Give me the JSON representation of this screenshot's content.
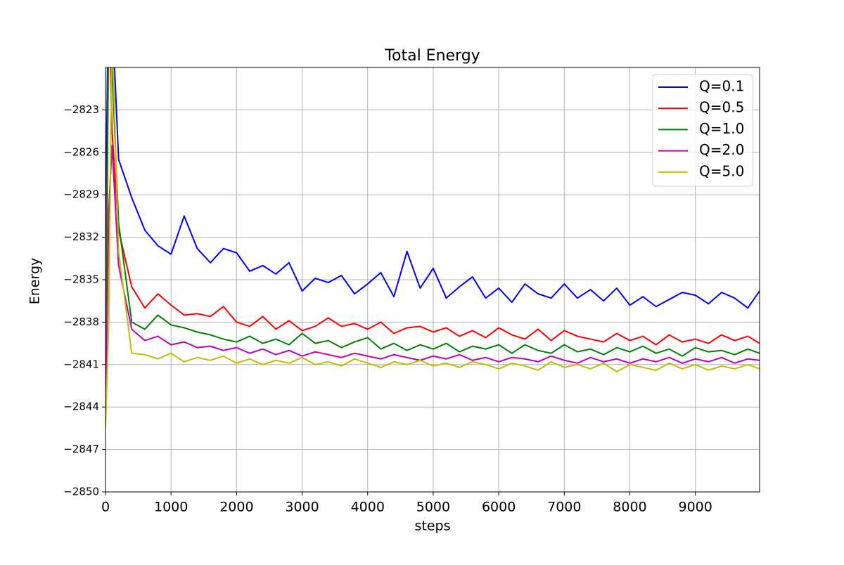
{
  "chart_data": {
    "type": "line",
    "title": "Total Energy",
    "x_label": "steps",
    "y_label": "Energy",
    "x": [
      0,
      50,
      100,
      200,
      400,
      600,
      800,
      1000,
      1200,
      1400,
      1600,
      1800,
      2000,
      2200,
      2400,
      2600,
      2800,
      3000,
      3200,
      3400,
      3600,
      3800,
      4000,
      4200,
      4400,
      4600,
      4800,
      5000,
      5200,
      5400,
      5600,
      5800,
      6000,
      6200,
      6400,
      6600,
      6800,
      7000,
      7200,
      7400,
      7600,
      7800,
      8000,
      8200,
      8400,
      8600,
      8800,
      9000,
      9200,
      9400,
      9600,
      9800,
      9980
    ],
    "series": [
      {
        "name": "Q=0.1",
        "color": "#0000ff",
        "values": [
          -2832.7,
          -2812,
          -2816,
          -2826.5,
          -2829.2,
          -2831.5,
          -2832.6,
          -2833.2,
          -2830.5,
          -2832.8,
          -2833.8,
          -2832.8,
          -2833.1,
          -2834.4,
          -2834.0,
          -2834.6,
          -2833.8,
          -2835.8,
          -2834.9,
          -2835.2,
          -2834.7,
          -2836.0,
          -2835.3,
          -2834.5,
          -2836.2,
          -2833.0,
          -2835.6,
          -2834.2,
          -2836.3,
          -2835.5,
          -2834.8,
          -2836.3,
          -2835.6,
          -2836.6,
          -2835.3,
          -2836.0,
          -2836.3,
          -2835.3,
          -2836.3,
          -2835.7,
          -2836.5,
          -2835.6,
          -2836.8,
          -2836.2,
          -2836.9,
          -2836.4,
          -2835.9,
          -2836.1,
          -2836.7,
          -2835.9,
          -2836.3,
          -2837.0,
          -2835.8
        ]
      },
      {
        "name": "Q=0.5",
        "color": "#ff0000",
        "values": [
          -2840.5,
          -2815,
          -2824.5,
          -2831.5,
          -2835.5,
          -2837.0,
          -2836.0,
          -2836.8,
          -2837.5,
          -2837.4,
          -2837.6,
          -2836.9,
          -2838.0,
          -2838.3,
          -2837.6,
          -2838.5,
          -2837.9,
          -2838.6,
          -2838.3,
          -2837.7,
          -2838.3,
          -2838.1,
          -2838.5,
          -2838.0,
          -2838.8,
          -2838.4,
          -2838.3,
          -2838.7,
          -2838.4,
          -2839.0,
          -2838.6,
          -2839.1,
          -2838.4,
          -2838.9,
          -2839.2,
          -2838.5,
          -2839.3,
          -2838.6,
          -2839.0,
          -2839.2,
          -2839.4,
          -2838.8,
          -2839.3,
          -2839.0,
          -2839.6,
          -2838.9,
          -2839.4,
          -2839.2,
          -2839.5,
          -2838.9,
          -2839.3,
          -2839.0,
          -2839.5
        ]
      },
      {
        "name": "Q=1.0",
        "color": "#008000",
        "values": [
          -2843,
          -2816,
          -2820,
          -2831,
          -2838.0,
          -2838.5,
          -2837.5,
          -2838.2,
          -2838.4,
          -2838.7,
          -2838.9,
          -2839.2,
          -2839.4,
          -2839.0,
          -2839.5,
          -2839.2,
          -2839.6,
          -2838.8,
          -2839.5,
          -2839.3,
          -2839.8,
          -2839.4,
          -2839.1,
          -2839.9,
          -2839.5,
          -2840.0,
          -2839.6,
          -2839.9,
          -2839.5,
          -2840.1,
          -2839.7,
          -2839.9,
          -2839.6,
          -2840.2,
          -2839.6,
          -2840.0,
          -2840.2,
          -2839.6,
          -2840.1,
          -2839.9,
          -2840.3,
          -2839.8,
          -2840.1,
          -2839.7,
          -2840.2,
          -2839.9,
          -2840.4,
          -2839.8,
          -2840.1,
          -2840.0,
          -2840.3,
          -2839.9,
          -2840.2
        ]
      },
      {
        "name": "Q=2.0",
        "color": "#bf00bf",
        "values": [
          -2844.5,
          -2830,
          -2825.5,
          -2834,
          -2838.5,
          -2839.3,
          -2839.0,
          -2839.6,
          -2839.4,
          -2839.8,
          -2839.7,
          -2840.0,
          -2839.8,
          -2840.2,
          -2839.9,
          -2840.3,
          -2840.0,
          -2840.4,
          -2840.1,
          -2840.3,
          -2840.5,
          -2840.2,
          -2840.4,
          -2840.6,
          -2840.3,
          -2840.5,
          -2840.7,
          -2840.4,
          -2840.6,
          -2840.3,
          -2840.7,
          -2840.5,
          -2840.8,
          -2840.5,
          -2840.6,
          -2840.8,
          -2840.4,
          -2840.7,
          -2840.9,
          -2840.5,
          -2840.8,
          -2840.6,
          -2840.9,
          -2840.6,
          -2840.8,
          -2840.5,
          -2840.9,
          -2840.6,
          -2840.8,
          -2840.5,
          -2840.9,
          -2840.6,
          -2840.7
        ]
      },
      {
        "name": "Q=5.0",
        "color": "#bfbf00",
        "values": [
          -2845.5,
          -2838,
          -2817,
          -2833,
          -2840.2,
          -2840.3,
          -2840.6,
          -2840.2,
          -2840.8,
          -2840.5,
          -2840.7,
          -2840.4,
          -2840.9,
          -2840.6,
          -2841.0,
          -2840.7,
          -2840.9,
          -2840.5,
          -2841.0,
          -2840.8,
          -2841.1,
          -2840.6,
          -2840.9,
          -2841.2,
          -2840.8,
          -2841.0,
          -2840.7,
          -2841.1,
          -2840.9,
          -2841.2,
          -2840.8,
          -2841.0,
          -2841.3,
          -2840.9,
          -2841.1,
          -2841.4,
          -2840.8,
          -2841.2,
          -2841.0,
          -2841.3,
          -2840.9,
          -2841.5,
          -2841.0,
          -2841.2,
          -2841.4,
          -2840.9,
          -2841.3,
          -2841.0,
          -2841.4,
          -2841.1,
          -2841.3,
          -2841.0,
          -2841.3
        ]
      }
    ],
    "xlim": [
      0,
      9980
    ],
    "ylim": [
      -2850,
      -2820
    ],
    "xticks": [
      0,
      1000,
      2000,
      3000,
      4000,
      5000,
      6000,
      7000,
      8000,
      9000
    ],
    "yticks": [
      {
        "value": -2850,
        "label": "−2850"
      },
      {
        "value": -2847,
        "label": "−2847"
      },
      {
        "value": -2844,
        "label": "−2844"
      },
      {
        "value": -2841,
        "label": "−2841"
      },
      {
        "value": -2838,
        "label": "−2838"
      },
      {
        "value": -2835,
        "label": "−2835"
      },
      {
        "value": -2832,
        "label": "−2832"
      },
      {
        "value": -2829,
        "label": "−2829"
      },
      {
        "value": -2826,
        "label": "−2826"
      },
      {
        "value": -2823,
        "label": "−2823"
      }
    ],
    "grid": true,
    "legend": "upper right"
  }
}
